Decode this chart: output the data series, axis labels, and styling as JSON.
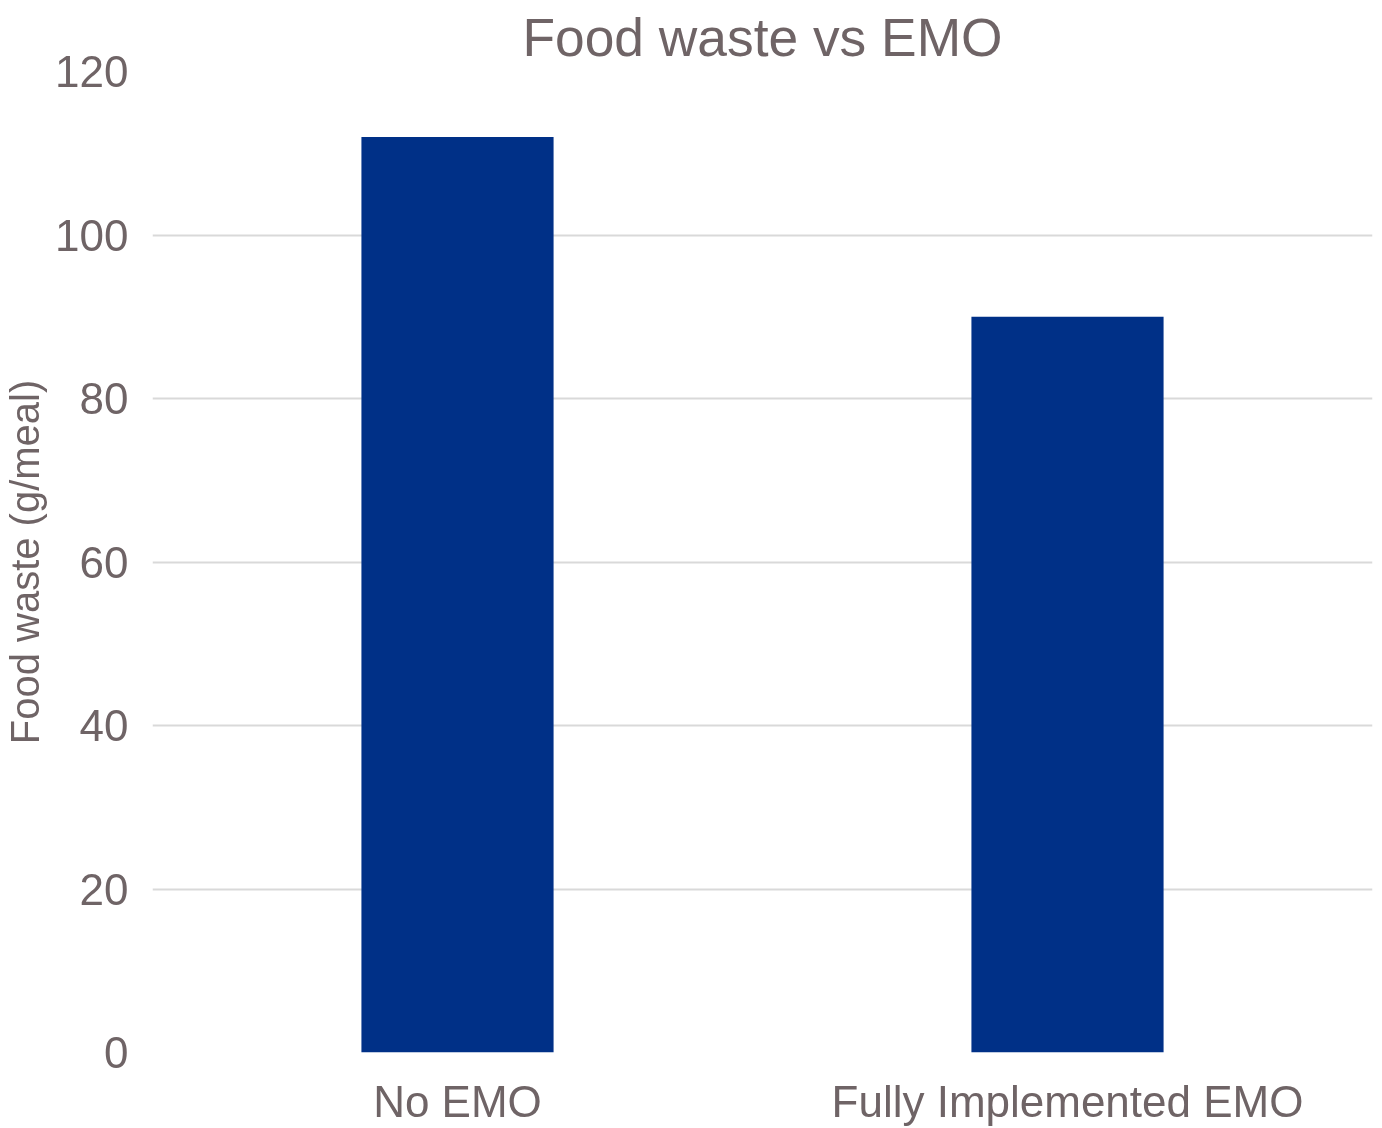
{
  "chart_data": {
    "type": "bar",
    "title": "Food waste vs EMO",
    "ylabel": "Food waste (g/meal)",
    "categories": [
      "No EMO",
      "Fully Implemented EMO"
    ],
    "values": [
      112,
      90
    ],
    "color": "#003087",
    "ylim": [
      0,
      120
    ],
    "yticks": [
      0,
      20,
      40,
      60,
      80,
      100,
      120
    ],
    "grid": "y"
  }
}
